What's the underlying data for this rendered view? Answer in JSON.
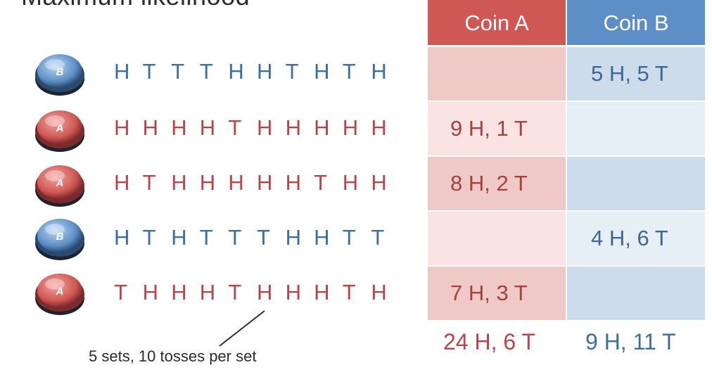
{
  "title": "Maximum likelihood",
  "header": {
    "coin_a": "Coin A",
    "coin_b": "Coin B"
  },
  "rows": [
    {
      "coin": "B",
      "tosses": [
        "H",
        "T",
        "T",
        "T",
        "H",
        "H",
        "T",
        "H",
        "T",
        "H"
      ],
      "coin_a": "",
      "coin_b": "5 H, 5 T"
    },
    {
      "coin": "A",
      "tosses": [
        "H",
        "H",
        "H",
        "H",
        "T",
        "H",
        "H",
        "H",
        "H",
        "H"
      ],
      "coin_a": "9 H, 1 T",
      "coin_b": ""
    },
    {
      "coin": "A",
      "tosses": [
        "H",
        "T",
        "H",
        "H",
        "H",
        "H",
        "H",
        "T",
        "H",
        "H"
      ],
      "coin_a": "8 H, 2 T",
      "coin_b": ""
    },
    {
      "coin": "B",
      "tosses": [
        "H",
        "T",
        "H",
        "T",
        "T",
        "T",
        "H",
        "H",
        "T",
        "T"
      ],
      "coin_a": "",
      "coin_b": "4 H, 6 T"
    },
    {
      "coin": "A",
      "tosses": [
        "T",
        "H",
        "H",
        "H",
        "T",
        "H",
        "H",
        "H",
        "T",
        "H"
      ],
      "coin_a": "7 H, 3 T",
      "coin_b": ""
    }
  ],
  "totals": {
    "coin_a": "24 H, 6 T",
    "coin_b": "9 H, 11 T"
  },
  "caption": "5 sets, 10 tosses per set",
  "colors": {
    "coin_a": "#cf5854",
    "coin_b": "#5d8fc6",
    "text_a": "#b8454a",
    "text_b": "#3f6f9c",
    "cell_a_dark": "#efc9c6",
    "cell_a_light": "#f9e4e3",
    "cell_b_dark": "#cddcea",
    "cell_b_light": "#e6eef6"
  }
}
